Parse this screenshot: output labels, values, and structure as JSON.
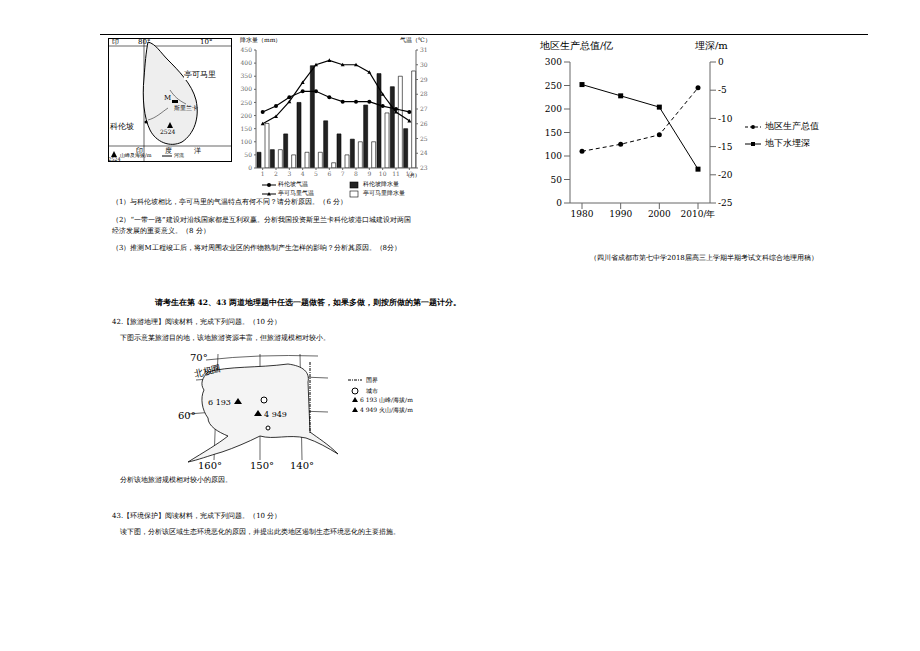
{
  "chart_data": [
    {
      "type": "bar_line",
      "categories": [
        "1",
        "2",
        "3",
        "4",
        "5",
        "6",
        "7",
        "8",
        "9",
        "10",
        "11",
        "12"
      ],
      "x_label": "(月)",
      "y_label": "降水量（mm）",
      "y2_label": "气温（℃）",
      "ylim": [
        0,
        450
      ],
      "yticks": [
        0,
        50,
        100,
        150,
        200,
        250,
        300,
        350,
        400,
        450
      ],
      "y2lim": [
        23,
        31
      ],
      "y2ticks": [
        23,
        24,
        25,
        26,
        27,
        28,
        29,
        30,
        31
      ],
      "grid": false,
      "series": [
        {
          "name": "科伦坡气温",
          "type": "line",
          "axis": "y2",
          "color": "#000000",
          "marker": "circle",
          "line_style": "solid",
          "values": [
            26.8,
            27.2,
            27.8,
            28.2,
            28.2,
            27.8,
            27.5,
            27.5,
            27.5,
            27.2,
            27.0,
            26.8
          ]
        },
        {
          "name": "科伦坡降水量",
          "type": "bar",
          "color": "#222222",
          "values": [
            60,
            70,
            130,
            250,
            390,
            180,
            130,
            110,
            240,
            360,
            310,
            150
          ]
        },
        {
          "name": "亭可马里气温",
          "type": "line",
          "axis": "y2",
          "color": "#000000",
          "marker": "triangle",
          "line_style": "solid",
          "values": [
            26.0,
            26.5,
            27.5,
            28.8,
            30.0,
            30.3,
            30.0,
            30.0,
            29.5,
            28.0,
            26.8,
            26.2
          ]
        },
        {
          "name": "亭可马里降水量",
          "type": "bar",
          "color": "#ffffff",
          "values": [
            170,
            70,
            50,
            60,
            60,
            20,
            50,
            100,
            100,
            210,
            350,
            370
          ]
        }
      ]
    },
    {
      "type": "line",
      "categories": [
        "1980",
        "1990",
        "2000",
        "2010/年"
      ],
      "y_label": "地区生产总值/亿",
      "y2_label": "埋深/m",
      "ylim": [
        0,
        300
      ],
      "yticks": [
        0,
        50,
        100,
        150,
        200,
        250,
        300
      ],
      "y2lim": [
        -25,
        0
      ],
      "y2ticks": [
        0,
        -5,
        -10,
        -15,
        -20,
        -25
      ],
      "grid": false,
      "series": [
        {
          "name": "地区生产总值",
          "color": "#000000",
          "marker": "circle",
          "line_style": "dashed",
          "values": [
            110,
            125,
            145,
            245
          ]
        },
        {
          "name": "地下水埋深",
          "axis": "y2",
          "color": "#000000",
          "marker": "square",
          "line_style": "solid",
          "values": [
            -4,
            -6,
            -8,
            -19
          ]
        }
      ]
    }
  ],
  "map_sri_lanka": {
    "india": "印",
    "lon": "80°",
    "lat": "10°",
    "trincomalee": "亭可马里",
    "m": "M",
    "sri_lanka": "斯里兰卡",
    "peak": "2524",
    "colombo": "科伦坡",
    "ocean": "印 度 洋",
    "legend_peak_value": "2524",
    "legend_peak": "山峰及海拔/m",
    "legend_river": "河流"
  },
  "text": {
    "q1": "（1）与科伦坡相比，亭可马里的气温特点有何不同？请分析原因。（6 分）",
    "q2a": "（2）“一带一路”建设对沿线国家都是互利双赢。分析我国投资斯里兰卡科伦坡港口城建设对两国",
    "q2b": "经济发展的重要意义。（8 分）",
    "q3": "（3）推测M工程竣工后，将对周围农业区的作物熟制产生怎样的影响？分析其原因。（8分）",
    "source": "（四川省成都市第七中学2018届高三上学期半期考试文科综合地理用稿）",
    "instruction": "请考生在第 42、43 两道地理题中任选一题做答，如果多做，则按所做的第一题计分。",
    "q42_head": "42.【旅游地理】阅读材料，完成下列问题。（10 分）",
    "q42_body": "下图示意某旅游目的地，该地旅游资源丰富，但旅游规模相对较小。",
    "q42_ask": "分析该地旅游规模相对较小的原因。",
    "q43_head": "43.【环境保护】阅读材料，完成下列问题。（10 分）",
    "q43_body": "读下图，分析该区域生态环境恶化的原因，并提出此类地区遏制生态环境恶化的主要措施。"
  },
  "map_alaska": {
    "lat70": "70°",
    "arctic": "北极圈",
    "lat60": "60°",
    "lon160": "160°",
    "lon150": "150°",
    "lon140": "140°",
    "peak": "6 193",
    "volcano": "4 949",
    "legend_border": "国界",
    "legend_city": "城市",
    "legend_peak": "6 193 山峰/海拔/m",
    "legend_volcano": "4 949 火山/海拔/m"
  }
}
